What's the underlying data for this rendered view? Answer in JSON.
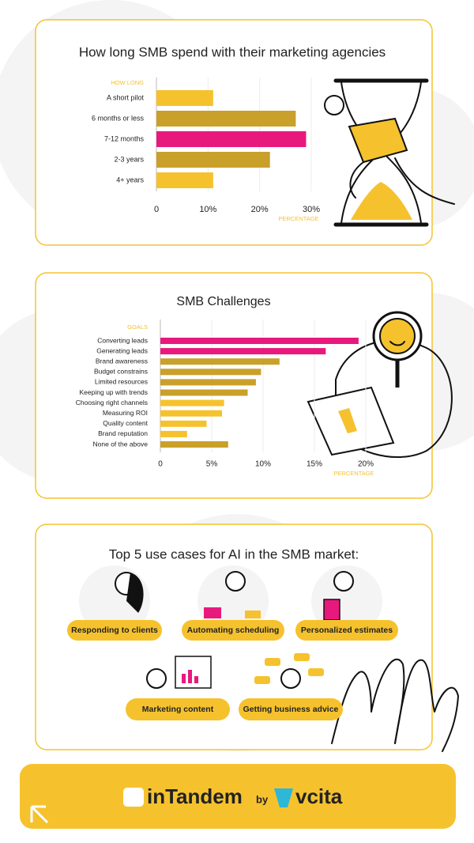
{
  "chart_data": [
    {
      "type": "bar",
      "orientation": "horizontal",
      "title": "How long SMB spend with their marketing agencies",
      "y_label": "HOW LONG",
      "x_label": "PERCENTAGE",
      "categories": [
        "A short pilot",
        "6 months or less",
        "7-12 months",
        "2-3 years",
        "4+ years"
      ],
      "values": [
        11,
        27,
        29,
        22,
        11
      ],
      "colors": [
        "#f5c22e",
        "#c9a02a",
        "#e8197d",
        "#c9a02a",
        "#f5c22e"
      ],
      "xlim": [
        0,
        30
      ],
      "xticks": [
        0,
        {
          "value": 10,
          "label": "10%"
        },
        {
          "value": 20,
          "label": "20%"
        },
        {
          "value": 30,
          "label": "30%"
        }
      ],
      "grid": true
    },
    {
      "type": "bar",
      "orientation": "horizontal",
      "title": "SMB Challenges",
      "y_label": "GOALS",
      "x_label": "PERCENTAGE",
      "categories": [
        "Converting leads",
        "Generating leads",
        "Brand awareness",
        "Budget constrains",
        "Limited resources",
        "Keeping up with trends",
        "Choosing right channels",
        "Measuring ROI",
        "Quality content",
        "Brand reputation",
        "None of the above"
      ],
      "values": [
        19.3,
        16.1,
        11.6,
        9.8,
        9.3,
        8.5,
        6.2,
        6.0,
        4.5,
        2.6,
        6.6
      ],
      "colors": [
        "#e8197d",
        "#e8197d",
        "#c9a02a",
        "#c9a02a",
        "#c9a02a",
        "#c9a02a",
        "#f5c22e",
        "#f5c22e",
        "#f5c22e",
        "#f5c22e",
        "#c9a02a"
      ],
      "xlim": [
        0,
        20
      ],
      "xticks": [
        0,
        {
          "value": 5,
          "label": "5%"
        },
        {
          "value": 10,
          "label": "10%"
        },
        {
          "value": 15,
          "label": "15%"
        },
        {
          "value": 20,
          "label": "20%"
        }
      ],
      "grid": true
    }
  ],
  "use_cases": {
    "title": "Top 5 use cases for AI in the SMB market:",
    "items": [
      "Responding to clients",
      "Automating scheduling",
      "Personalized estimates",
      "Marketing content",
      "Getting business advice"
    ]
  },
  "footer": {
    "brand": "inTandem",
    "by": "by",
    "partner": "vcita"
  }
}
